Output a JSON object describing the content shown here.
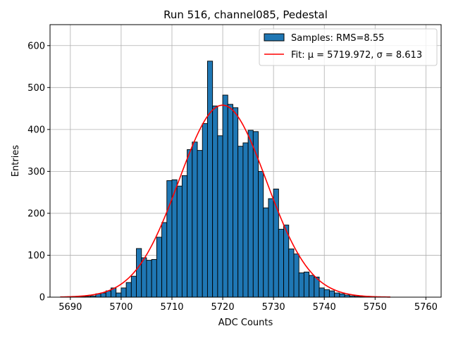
{
  "chart_data": {
    "type": "bar",
    "title": "Run 516, channel085, Pedestal",
    "xlabel": "ADC Counts",
    "ylabel": "Entries",
    "xlim": [
      5686,
      5763
    ],
    "ylim": [
      0,
      650
    ],
    "xticks": [
      5690,
      5700,
      5710,
      5720,
      5730,
      5740,
      5750,
      5760
    ],
    "yticks": [
      0,
      100,
      200,
      300,
      400,
      500,
      600
    ],
    "grid": true,
    "legend_position": "upper right",
    "colors": {
      "bars": "#1f77b4",
      "bar_edge": "#000000",
      "fit": "#ff0000",
      "grid": "#b0b0b0"
    },
    "histogram": {
      "name": "Samples: RMS=8.55",
      "bin_width": 1,
      "bin_starts": [
        5692,
        5693,
        5694,
        5695,
        5696,
        5697,
        5698,
        5699,
        5700,
        5701,
        5702,
        5703,
        5704,
        5705,
        5706,
        5707,
        5708,
        5709,
        5710,
        5711,
        5712,
        5713,
        5714,
        5715,
        5716,
        5717,
        5718,
        5719,
        5720,
        5721,
        5722,
        5723,
        5724,
        5725,
        5726,
        5727,
        5728,
        5729,
        5730,
        5731,
        5732,
        5733,
        5734,
        5735,
        5736,
        5737,
        5738,
        5739,
        5740,
        5741,
        5742,
        5743,
        5744,
        5745,
        5746,
        5747,
        5748,
        5749
      ],
      "counts": [
        1,
        2,
        3,
        8,
        10,
        15,
        22,
        10,
        22,
        35,
        50,
        116,
        94,
        88,
        90,
        143,
        178,
        278,
        280,
        265,
        290,
        352,
        370,
        350,
        414,
        563,
        456,
        385,
        482,
        460,
        452,
        360,
        368,
        398,
        395,
        300,
        213,
        235,
        258,
        162,
        172,
        115,
        103,
        58,
        60,
        52,
        48,
        22,
        18,
        15,
        10,
        8,
        5,
        3,
        2,
        1,
        1,
        1
      ]
    },
    "fit": {
      "name": "Fit: μ = 5719.972, σ = 8.613",
      "mu": 5719.972,
      "sigma": 8.613,
      "amplitude": 458,
      "x_range": [
        5688,
        5753
      ]
    }
  }
}
